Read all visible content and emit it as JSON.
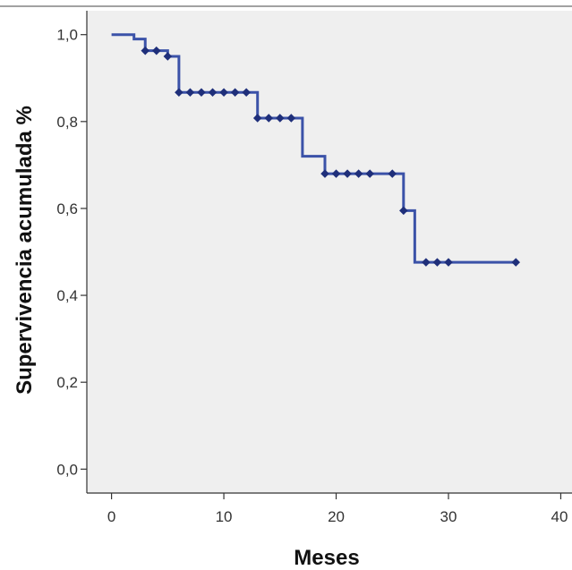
{
  "chart_data": {
    "type": "line",
    "title": "",
    "xlabel": "Meses",
    "ylabel": "Supervivencia acumulada %",
    "xlim": [
      -2.2,
      41
    ],
    "ylim": [
      -0.055,
      1.055
    ],
    "x_ticks": [
      0,
      10,
      20,
      30,
      40
    ],
    "x_tick_labels": [
      "0",
      "10",
      "20",
      "30",
      "40"
    ],
    "y_ticks": [
      0.0,
      0.2,
      0.4,
      0.6,
      0.8,
      1.0
    ],
    "y_tick_labels": [
      "0,0",
      "0,2",
      "0,4",
      "0,6",
      "0,8",
      "1,0"
    ],
    "grid": false,
    "series": [
      {
        "step_points": [
          {
            "x": 0,
            "y": 1.0
          },
          {
            "x": 2,
            "y": 0.99
          },
          {
            "x": 3,
            "y": 0.963
          },
          {
            "x": 5,
            "y": 0.95
          },
          {
            "x": 6,
            "y": 0.867
          },
          {
            "x": 13,
            "y": 0.808
          },
          {
            "x": 17,
            "y": 0.72
          },
          {
            "x": 19,
            "y": 0.68
          },
          {
            "x": 26,
            "y": 0.595
          },
          {
            "x": 27,
            "y": 0.476
          },
          {
            "x": 36,
            "y": 0.476
          }
        ],
        "censored": [
          {
            "x": 3,
            "y": 0.963
          },
          {
            "x": 4,
            "y": 0.963
          },
          {
            "x": 5,
            "y": 0.95
          },
          {
            "x": 6,
            "y": 0.867
          },
          {
            "x": 7,
            "y": 0.867
          },
          {
            "x": 8,
            "y": 0.867
          },
          {
            "x": 9,
            "y": 0.867
          },
          {
            "x": 10,
            "y": 0.867
          },
          {
            "x": 11,
            "y": 0.867
          },
          {
            "x": 12,
            "y": 0.867
          },
          {
            "x": 13,
            "y": 0.808
          },
          {
            "x": 14,
            "y": 0.808
          },
          {
            "x": 15,
            "y": 0.808
          },
          {
            "x": 16,
            "y": 0.808
          },
          {
            "x": 19,
            "y": 0.68
          },
          {
            "x": 20,
            "y": 0.68
          },
          {
            "x": 21,
            "y": 0.68
          },
          {
            "x": 22,
            "y": 0.68
          },
          {
            "x": 23,
            "y": 0.68
          },
          {
            "x": 25,
            "y": 0.68
          },
          {
            "x": 26,
            "y": 0.595
          },
          {
            "x": 28,
            "y": 0.476
          },
          {
            "x": 29,
            "y": 0.476
          },
          {
            "x": 30,
            "y": 0.476
          },
          {
            "x": 36,
            "y": 0.476
          }
        ]
      }
    ],
    "colors": {
      "line": "#3b52a8",
      "marker": "#1f2f7a",
      "plot_background": "#efefef",
      "axis": "#333333"
    }
  }
}
